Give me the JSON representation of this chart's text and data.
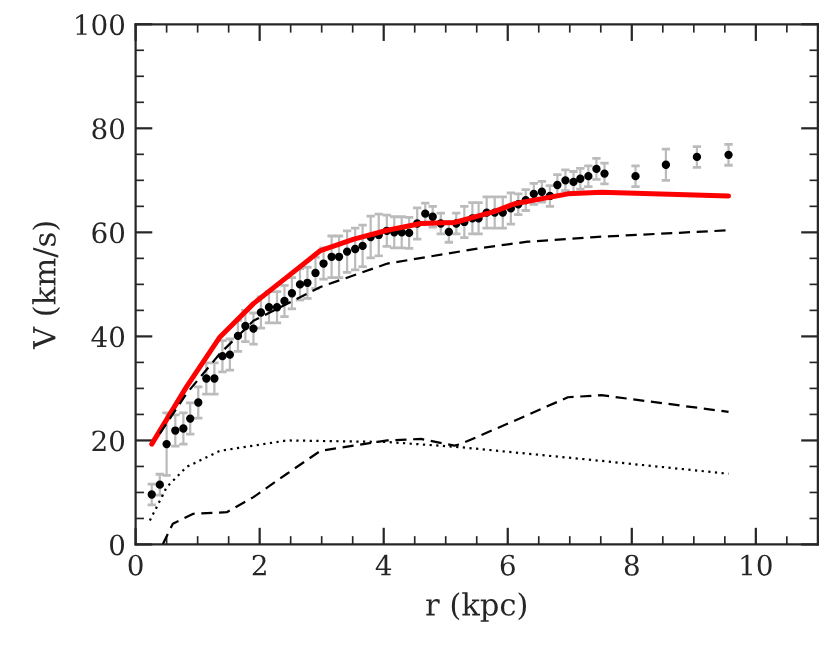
{
  "chart_data": {
    "type": "scatter",
    "xlabel": "r (kpc)",
    "ylabel": "V (km/s)",
    "xlim": [
      0,
      11
    ],
    "ylim": [
      0,
      100
    ],
    "xticks": [
      0,
      2,
      4,
      6,
      8,
      10
    ],
    "yticks": [
      0,
      20,
      40,
      60,
      80,
      100
    ],
    "grid": false,
    "legend": false,
    "series": [
      {
        "color": "#000000",
        "marker": "circle",
        "x": [
          0.26,
          0.39,
          0.5,
          0.64,
          0.77,
          0.88,
          1.01,
          1.14,
          1.27,
          1.4,
          1.52,
          1.65,
          1.77,
          1.9,
          2.02,
          2.15,
          2.28,
          2.4,
          2.52,
          2.65,
          2.77,
          2.9,
          3.03,
          3.16,
          3.28,
          3.41,
          3.54,
          3.66,
          3.79,
          3.92,
          4.05,
          4.17,
          4.29,
          4.41,
          4.54,
          4.67,
          4.79,
          4.92,
          5.05,
          5.17,
          5.3,
          5.43,
          5.53,
          5.66,
          5.79,
          5.92,
          6.05,
          6.17,
          6.29,
          6.42,
          6.55,
          6.68,
          6.8,
          6.93,
          7.06,
          7.17,
          7.3,
          7.43,
          7.56,
          8.06,
          8.55,
          9.05,
          9.56
        ],
        "values": [
          9.6,
          11.5,
          19.3,
          21.9,
          22.3,
          24.2,
          27.3,
          31.9,
          31.9,
          36.2,
          36.5,
          40.1,
          42.0,
          41.5,
          44.6,
          45.6,
          45.6,
          46.8,
          48.3,
          50.0,
          50.3,
          52.2,
          54.0,
          55.3,
          55.3,
          56.3,
          56.8,
          57.4,
          59.1,
          59.5,
          60.3,
          60.0,
          60.0,
          59.9,
          61.7,
          63.6,
          63.0,
          61.7,
          60.1,
          61.7,
          62.0,
          62.7,
          62.7,
          63.8,
          63.8,
          63.8,
          64.6,
          65.4,
          66.2,
          67.4,
          67.8,
          67.0,
          69.1,
          70.0,
          69.7,
          70.3,
          70.8,
          72.2,
          71.3,
          70.8,
          73.0,
          74.5,
          74.9
        ],
        "errors": [
          2,
          2,
          6,
          3,
          3,
          3,
          3,
          3,
          3,
          3,
          3,
          3,
          3,
          3,
          3,
          3,
          3,
          3,
          3,
          3,
          3,
          3,
          3,
          4,
          4,
          4,
          4,
          4,
          4,
          4,
          3,
          3,
          3,
          3,
          3,
          2,
          2,
          2,
          2,
          2,
          3,
          3,
          3,
          3,
          3,
          3,
          3,
          2,
          2,
          2,
          2,
          2,
          2,
          2,
          2,
          2,
          2,
          2,
          2,
          2,
          3,
          2,
          2
        ]
      },
      {
        "type": "line",
        "color": "#ff0000",
        "line_style": "solid",
        "x": [
          0.26,
          0.82,
          1.36,
          1.9,
          2.44,
          2.98,
          3.52,
          4.06,
          4.6,
          5.14,
          5.78,
          6.11,
          6.97,
          7.51,
          9.56
        ],
        "values": [
          19.3,
          30.3,
          39.9,
          46.3,
          51.4,
          56.5,
          58.7,
          60.4,
          61.7,
          61.9,
          64.0,
          65.5,
          67.4,
          67.7,
          67.0
        ]
      },
      {
        "type": "line",
        "color": "#000000",
        "line_style": "dashed",
        "x": [
          0.39,
          0.82,
          1.36,
          1.9,
          2.98,
          4.06,
          5.57,
          6.32,
          7.4,
          9.56
        ],
        "values": [
          21.3,
          29.0,
          36.7,
          43.0,
          49.5,
          54.0,
          57.0,
          58.2,
          59.1,
          60.4
        ]
      },
      {
        "type": "line",
        "color": "#000000",
        "line_style": "dotted",
        "x": [
          0.23,
          0.5,
          0.82,
          1.36,
          2.44,
          4.06,
          5.24,
          7.4,
          9.56
        ],
        "values": [
          4.6,
          11.0,
          14.9,
          18.0,
          20.0,
          19.7,
          18.7,
          16.2,
          13.6
        ]
      },
      {
        "type": "line",
        "color": "#000000",
        "line_style": "dashed",
        "x": [
          0.44,
          0.6,
          0.93,
          1.47,
          1.9,
          2.44,
          2.98,
          4.06,
          4.6,
          5.14,
          5.24,
          6.11,
          6.97,
          7.51,
          9.56
        ],
        "values": [
          0.1,
          4.0,
          5.9,
          6.2,
          9.1,
          13.6,
          18.0,
          20.0,
          20.3,
          19.0,
          19.3,
          23.8,
          28.3,
          28.7,
          25.5
        ]
      }
    ]
  }
}
